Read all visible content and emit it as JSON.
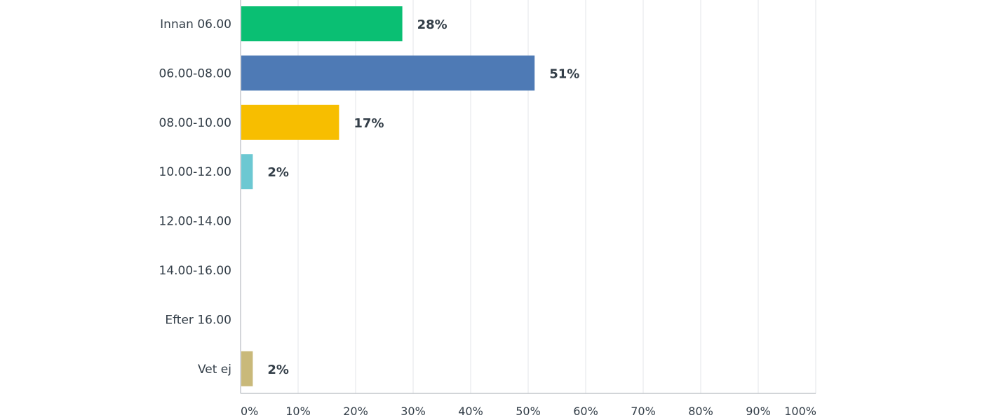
{
  "chart_data": {
    "type": "bar",
    "orientation": "horizontal",
    "categories": [
      "Innan 06.00",
      "06.00-08.00",
      "08.00-10.00",
      "10.00-12.00",
      "12.00-14.00",
      "14.00-16.00",
      "Efter 16.00",
      "Vet ej"
    ],
    "values": [
      28,
      51,
      17,
      2,
      0,
      0,
      0,
      2
    ],
    "data_labels": [
      "28%",
      "51%",
      "17%",
      "2%",
      "",
      "",
      "",
      "2%"
    ],
    "colors": [
      "#0abf73",
      "#4e7ab5",
      "#f7be00",
      "#6cc8d2",
      "#a48ebd",
      "#e87d6c",
      "#999999",
      "#c9b97a"
    ],
    "xlim": [
      0,
      100
    ],
    "x_ticks": [
      0,
      10,
      20,
      30,
      40,
      50,
      60,
      70,
      80,
      90,
      100
    ],
    "x_tick_labels": [
      "0%",
      "10%",
      "20%",
      "30%",
      "40%",
      "50%",
      "60%",
      "70%",
      "80%",
      "90%",
      "100%"
    ],
    "grid": true,
    "title": "",
    "xlabel": "",
    "ylabel": ""
  }
}
